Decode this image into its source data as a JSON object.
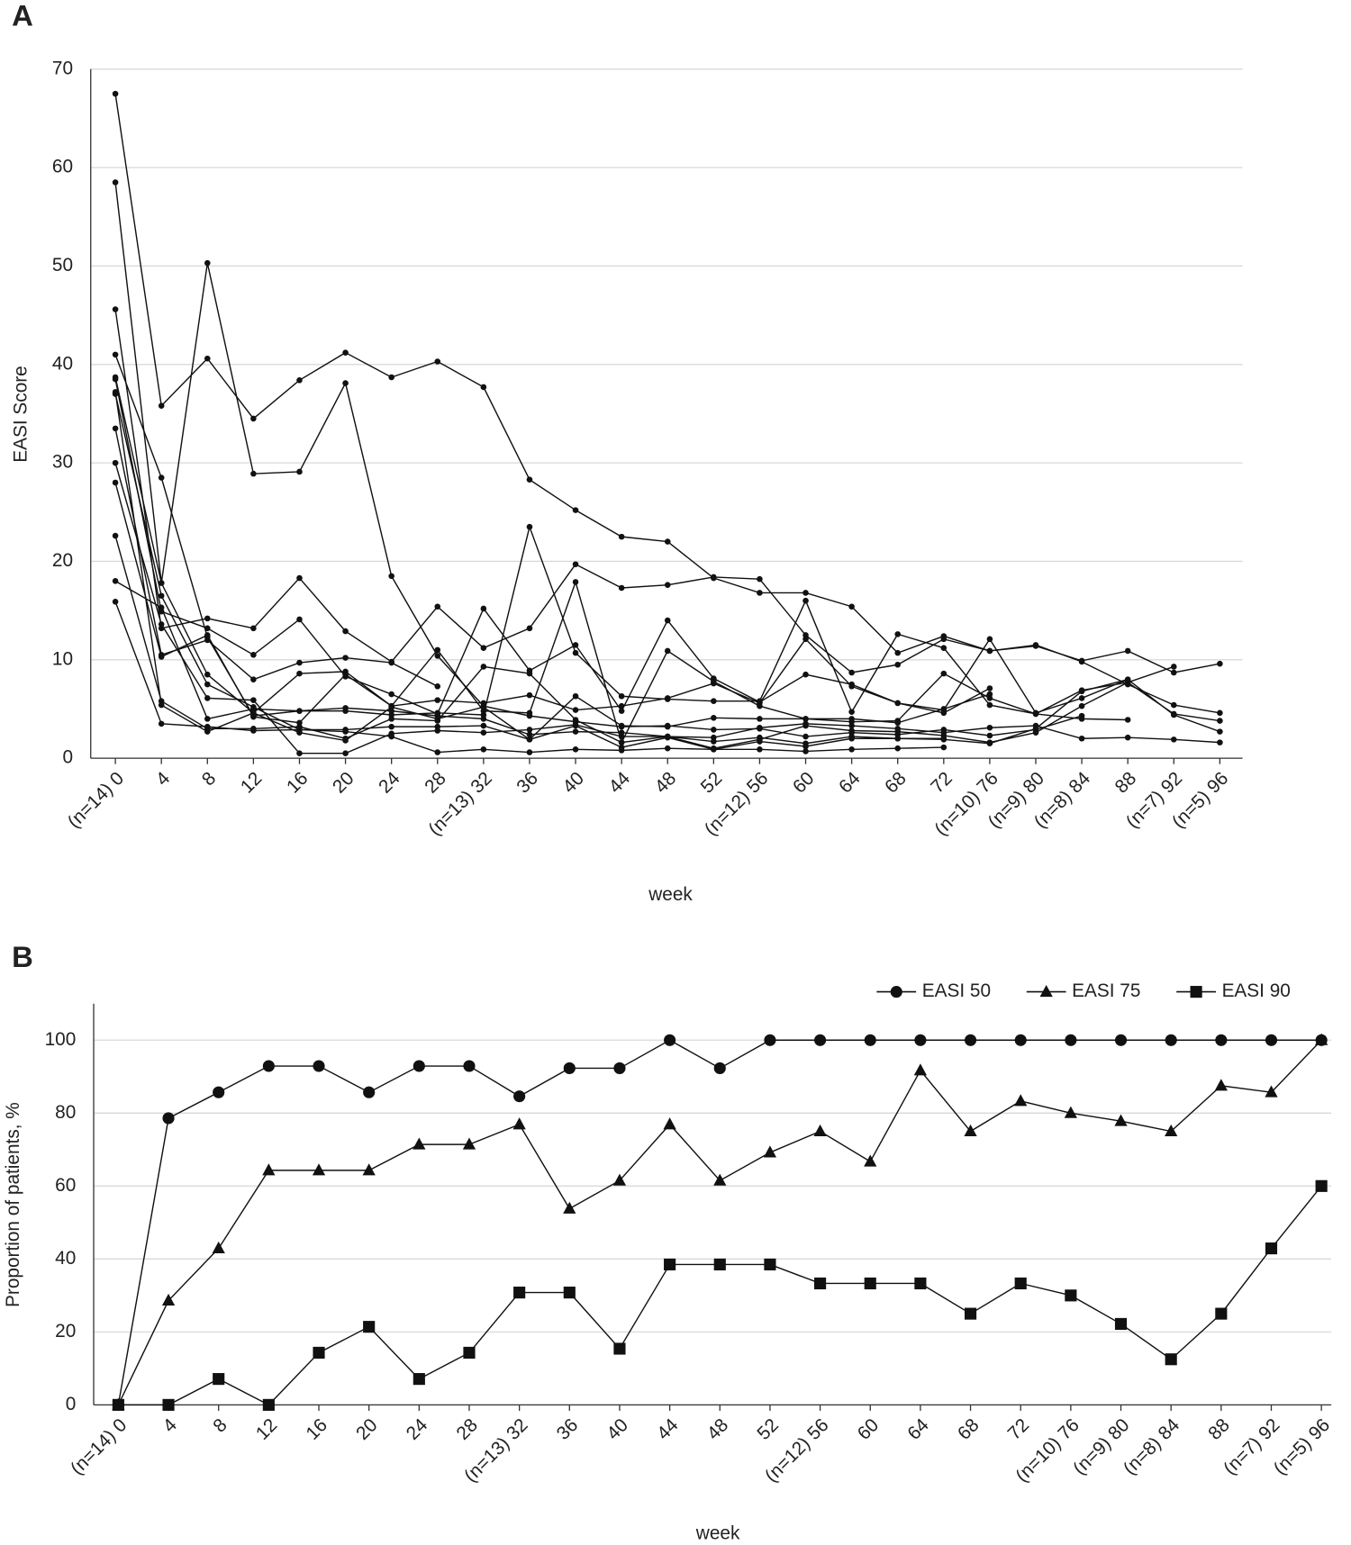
{
  "chart_data": [
    {
      "type": "line",
      "label": "A",
      "ylabel": "EASI Score",
      "xlabel": "week",
      "categories": [
        "(n=14) 0",
        "4",
        "8",
        "12",
        "16",
        "20",
        "24",
        "28",
        "(n=13) 32",
        "36",
        "40",
        "44",
        "48",
        "52",
        "(n=12) 56",
        "60",
        "64",
        "68",
        "72",
        "(n=10) 76",
        "(n=9) 80",
        "(n=8) 84",
        "88",
        "(n=7) 92",
        "(n=5) 96"
      ],
      "ylim": [
        0,
        70
      ],
      "yticks": [
        0,
        10,
        20,
        30,
        40,
        50,
        60,
        70
      ],
      "grid": true,
      "series": [
        {
          "color": "#111111",
          "marker": "dot",
          "values": [
            67.5,
            35.8,
            40.6,
            34.5,
            38.4,
            41.2,
            38.7,
            40.3,
            37.7,
            28.3,
            25.2,
            22.5,
            22,
            18.3,
            16.8,
            16.8,
            15.4,
            10.7,
            12.4,
            10.9,
            11.4,
            9.9,
            10.9,
            8.7,
            9.6
          ]
        },
        {
          "color": "#111111",
          "marker": "dot",
          "values": [
            58.5,
            17.8,
            50.3,
            28.9,
            29.1,
            38.1,
            18.5,
            10.4,
            5.3,
            4.3,
            3.7,
            3.2,
            3.3,
            2.9,
            3.0,
            2.2,
            2.6,
            2.4,
            2.9,
            2.3,
            2.9,
            4.3,
            null,
            null,
            null
          ]
        },
        {
          "color": "#111111",
          "marker": "dot",
          "values": [
            45.6,
            13.2,
            14.2,
            13.2,
            18.3,
            12.9,
            9.8,
            15.4,
            11.2,
            13.2,
            19.7,
            17.3,
            17.6,
            18.4,
            18.2,
            12.5,
            8.7,
            9.5,
            12.1,
            10.9,
            11.5,
            9.8,
            7.5,
            5.4,
            4.6
          ]
        },
        {
          "color": "#111111",
          "marker": "dot",
          "values": [
            41,
            28.5,
            12.3,
            4.3,
            4.8,
            4.8,
            4.4,
            4.6,
            4.4,
            23.5,
            10.7,
            6.3,
            6.0,
            5.8,
            5.8,
            16.0,
            4.7,
            12.6,
            11.2,
            5.4,
            4.5,
            6.9,
            7.7,
            4.5,
            3.8
          ]
        },
        {
          "color": "#111111",
          "marker": "dot",
          "values": [
            38.7,
            17.8,
            8.5,
            4.6,
            8.6,
            8.8,
            5.3,
            5.9,
            5.6,
            6.4,
            4.9,
            5.3,
            6.1,
            7.6,
            5.6,
            12.1,
            7.3,
            5.6,
            4.9,
            12.1,
            4.6,
            6.1,
            8.0,
            null,
            null
          ]
        },
        {
          "color": "#111111",
          "marker": "dot",
          "values": [
            38.5,
            14.9,
            13.2,
            10.5,
            14.1,
            8.3,
            6.5,
            4.5,
            15.2,
            8.9,
            11.5,
            4.8,
            14.0,
            8.1,
            5.7,
            8.5,
            7.5,
            5.6,
            4.6,
            7.1,
            null,
            null,
            null,
            null,
            null
          ]
        },
        {
          "color": "#111111",
          "marker": "dot",
          "values": [
            37,
            16.5,
            7.5,
            5.2,
            2.9,
            2.9,
            3.2,
            3.2,
            3.3,
            1.9,
            6.3,
            3.3,
            3.2,
            4.1,
            4.0,
            4.0,
            3.7,
            3.8,
            8.6,
            6.1,
            4.5,
            4.0,
            3.9,
            null,
            null
          ]
        },
        {
          "color": "#111111",
          "marker": "dot",
          "values": [
            33.5,
            10.5,
            12.0,
            8.0,
            9.7,
            10.2,
            9.7,
            7.3,
            null,
            null,
            null,
            null,
            null,
            null,
            null,
            null,
            null,
            null,
            null,
            null,
            null,
            null,
            null,
            null,
            null
          ]
        },
        {
          "color": "#111111",
          "marker": "dot",
          "values": [
            30,
            13.6,
            6.1,
            5.9,
            0.5,
            0.5,
            2.5,
            2.8,
            2.6,
            2.9,
            3.4,
            2.2,
            2.2,
            1.7,
            2.1,
            1.5,
            2.2,
            2.0,
            1.9,
            1.5,
            3.0,
            6.8,
            8.0,
            4.4,
            2.7
          ]
        },
        {
          "color": "#111111",
          "marker": "dot",
          "values": [
            28,
            10.3,
            12.5,
            4.2,
            3.6,
            8.5,
            5.3,
            11.0,
            4.8,
            4.6,
            17.9,
            1.6,
            10.9,
            7.8,
            5.3,
            4.0,
            4.0,
            3.6,
            5.0,
            6.5,
            null,
            null,
            null,
            null,
            null
          ]
        },
        {
          "color": "#111111",
          "marker": "dot",
          "values": [
            22.6,
            5.8,
            3.0,
            3.0,
            3.2,
            2.0,
            4.0,
            3.8,
            9.3,
            8.6,
            3.9,
            1.6,
            2.2,
            1.0,
            1.9,
            3.3,
            2.8,
            2.7,
            2.3,
            1.6,
            2.6,
            5.3,
            7.7,
            9.3,
            null
          ]
        },
        {
          "color": "#111111",
          "marker": "dot",
          "values": [
            18,
            15.3,
            4.0,
            5.0,
            4.8,
            5.1,
            4.8,
            4.3,
            4.0,
            2.4,
            2.7,
            2.6,
            2.2,
            2.1,
            3.1,
            3.5,
            3.3,
            3.0,
            2.6,
            3.1,
            3.3,
            2.0,
            2.1,
            1.9,
            1.6
          ]
        },
        {
          "color": "#111111",
          "marker": "dot",
          "values": [
            15.9,
            3.5,
            3.2,
            2.8,
            2.9,
            2.7,
            2.2,
            0.6,
            0.9,
            0.6,
            0.9,
            0.8,
            1.0,
            0.9,
            0.9,
            0.7,
            0.9,
            1.0,
            1.1,
            null,
            null,
            null,
            null,
            null,
            null
          ]
        },
        {
          "color": "#111111",
          "marker": "dot",
          "values": [
            37.2,
            5.4,
            2.7,
            4.6,
            2.6,
            1.8,
            5.2,
            4.0,
            5.2,
            1.9,
            3.3,
            1.1,
            2.1,
            0.9,
            1.7,
            1.2,
            2.0,
            2.0,
            2.0,
            null,
            null,
            null,
            null,
            null,
            null
          ]
        }
      ]
    },
    {
      "type": "line",
      "label": "B",
      "ylabel": "Proportion  of patients, %",
      "xlabel": "week",
      "categories": [
        "(n=14) 0",
        "4",
        "8",
        "12",
        "16",
        "20",
        "24",
        "28",
        "(n=13) 32",
        "36",
        "40",
        "44",
        "48",
        "52",
        "(n=12) 56",
        "60",
        "64",
        "68",
        "72",
        "(n=10) 76",
        "(n=9) 80",
        "(n=8) 84",
        "88",
        "(n=7) 92",
        "(n=5) 96"
      ],
      "ylim": [
        0,
        110
      ],
      "yticks": [
        0,
        20,
        40,
        60,
        80,
        100
      ],
      "grid": true,
      "legend": "upper right",
      "series": [
        {
          "name": "EASI 50",
          "color": "#111111",
          "marker": "circle",
          "values": [
            0,
            78.6,
            85.7,
            92.9,
            92.9,
            85.7,
            92.9,
            92.9,
            84.6,
            92.3,
            92.3,
            100,
            92.3,
            100,
            100,
            100,
            100,
            100,
            100,
            100,
            100,
            100,
            100,
            100,
            100
          ]
        },
        {
          "name": "EASI 75",
          "color": "#111111",
          "marker": "triangle",
          "values": [
            0,
            28.6,
            42.9,
            64.3,
            64.3,
            64.3,
            71.4,
            71.4,
            76.9,
            53.8,
            61.5,
            76.9,
            61.5,
            69.2,
            75,
            66.7,
            91.7,
            75,
            83.3,
            80,
            77.8,
            75,
            87.5,
            85.7,
            100
          ]
        },
        {
          "name": "EASI 90",
          "color": "#111111",
          "marker": "square",
          "values": [
            0,
            0,
            7.1,
            0,
            14.3,
            21.4,
            7.1,
            14.3,
            30.8,
            30.8,
            15.4,
            38.5,
            38.5,
            38.5,
            33.3,
            33.3,
            33.3,
            25,
            33.3,
            30,
            22.2,
            12.5,
            25,
            42.9,
            60
          ]
        }
      ]
    }
  ]
}
